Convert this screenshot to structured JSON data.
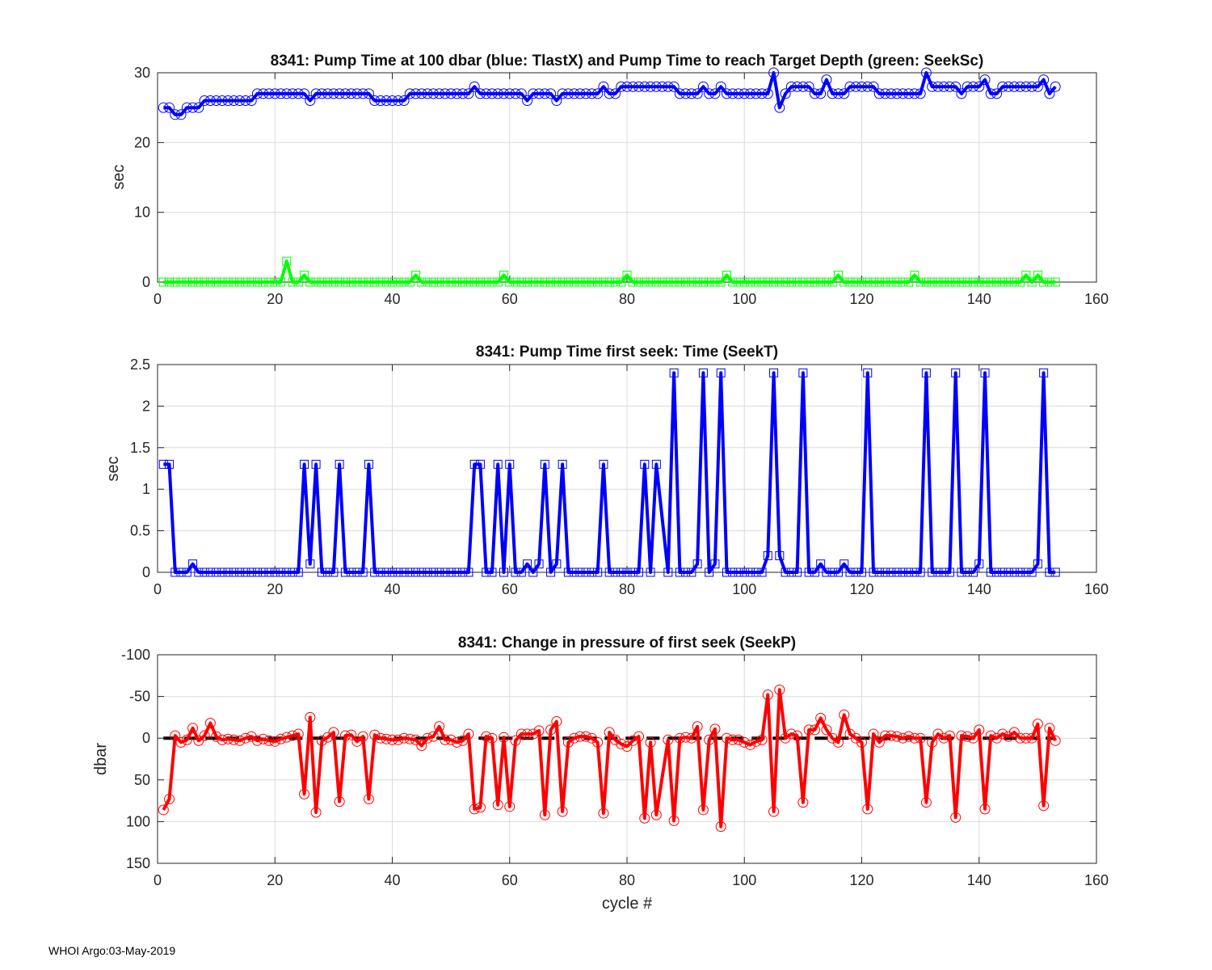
{
  "footer": "WHOI Argo:03-May-2019",
  "chart_data": [
    {
      "type": "line",
      "title": "8341:  Pump Time at 100 dbar (blue: TlastX) and Pump Time to reach Target Depth (green: SeekSc)",
      "xlabel": "",
      "ylabel": "sec",
      "xlim": [
        0,
        160
      ],
      "ylim": [
        0,
        30
      ],
      "reverse_y": false,
      "grid": true,
      "xticks": [
        0,
        20,
        40,
        60,
        80,
        100,
        120,
        140,
        160
      ],
      "yticks": [
        0,
        10,
        20,
        30
      ],
      "x_start": 1,
      "series": [
        {
          "name": "TlastX",
          "color": "#0000ff",
          "marker": "circle",
          "values": [
            25,
            25,
            24,
            24,
            25,
            25,
            25,
            26,
            26,
            26,
            26,
            26,
            26,
            26,
            26,
            26,
            27,
            27,
            27,
            27,
            27,
            27,
            27,
            27,
            27,
            26,
            27,
            27,
            27,
            27,
            27,
            27,
            27,
            27,
            27,
            27,
            26,
            26,
            26,
            26,
            26,
            26,
            27,
            27,
            27,
            27,
            27,
            27,
            27,
            27,
            27,
            27,
            27,
            28,
            27,
            27,
            27,
            27,
            27,
            27,
            27,
            27,
            26,
            27,
            27,
            27,
            27,
            26,
            27,
            27,
            27,
            27,
            27,
            27,
            27,
            28,
            27,
            27,
            28,
            28,
            28,
            28,
            28,
            28,
            28,
            28,
            28,
            28,
            27,
            27,
            27,
            27,
            28,
            27,
            27,
            28,
            27,
            27,
            27,
            27,
            27,
            27,
            27,
            27,
            30,
            25,
            27,
            28,
            28,
            28,
            28,
            27,
            27,
            29,
            27,
            27,
            27,
            28,
            28,
            28,
            28,
            28,
            27,
            27,
            27,
            27,
            27,
            27,
            27,
            27,
            30,
            28,
            28,
            28,
            28,
            28,
            27,
            28,
            28,
            28,
            29,
            27,
            27,
            28,
            28,
            28,
            28,
            28,
            28,
            28,
            29,
            27,
            28
          ]
        },
        {
          "name": "SeekSc",
          "color": "#00ff00",
          "marker": "square",
          "values": [
            0,
            0,
            0,
            0,
            0,
            0,
            0,
            0,
            0,
            0,
            0,
            0,
            0,
            0,
            0,
            0,
            0,
            0,
            0,
            0,
            0,
            3,
            0,
            0,
            1,
            0,
            0,
            0,
            0,
            0,
            0,
            0,
            0,
            0,
            0,
            0,
            0,
            0,
            0,
            0,
            0,
            0,
            0,
            1,
            0,
            0,
            0,
            0,
            0,
            0,
            0,
            0,
            0,
            0,
            0,
            0,
            0,
            0,
            1,
            0,
            0,
            0,
            0,
            0,
            0,
            0,
            0,
            0,
            0,
            0,
            0,
            0,
            0,
            0,
            0,
            0,
            0,
            0,
            0,
            1,
            0,
            0,
            0,
            0,
            0,
            0,
            0,
            0,
            0,
            0,
            0,
            0,
            0,
            0,
            0,
            0,
            1,
            0,
            0,
            0,
            0,
            0,
            0,
            0,
            0,
            0,
            0,
            0,
            0,
            0,
            0,
            0,
            0,
            0,
            0,
            1,
            0,
            0,
            0,
            0,
            0,
            0,
            0,
            0,
            0,
            0,
            0,
            0,
            1,
            0,
            0,
            0,
            0,
            0,
            0,
            0,
            0,
            0,
            0,
            0,
            0,
            0,
            0,
            0,
            0,
            0,
            0,
            1,
            0,
            1,
            0,
            0,
            0
          ]
        }
      ]
    },
    {
      "type": "line",
      "title": "8341: Pump Time first seek: Time (SeekT)",
      "xlabel": "",
      "ylabel": "sec",
      "xlim": [
        0,
        160
      ],
      "ylim": [
        0,
        2.5
      ],
      "reverse_y": false,
      "grid": true,
      "xticks": [
        0,
        20,
        40,
        60,
        80,
        100,
        120,
        140,
        160
      ],
      "yticks": [
        0,
        0.5,
        1,
        1.5,
        2,
        2.5
      ],
      "x_start": 1,
      "series": [
        {
          "name": "SeekT",
          "color": "#0000ff",
          "marker": "square",
          "values": [
            1.3,
            1.3,
            0,
            0,
            0,
            0.1,
            0,
            0,
            0,
            0,
            0,
            0,
            0,
            0,
            0,
            0,
            0,
            0,
            0,
            0,
            0,
            0,
            0,
            0,
            1.3,
            0.1,
            1.3,
            0,
            0,
            0,
            1.3,
            0,
            0,
            0,
            0,
            1.3,
            0,
            0,
            0,
            0,
            0,
            0,
            0,
            0,
            0,
            0,
            0,
            0,
            0,
            0,
            0,
            0,
            0,
            1.3,
            1.3,
            0,
            0,
            1.3,
            0,
            1.3,
            0,
            0,
            0.1,
            0,
            0.1,
            1.3,
            0,
            0.1,
            1.3,
            0,
            0,
            0,
            0,
            0,
            0,
            1.3,
            0,
            0,
            0,
            0,
            0,
            0,
            1.3,
            0,
            1.3,
            null,
            0,
            2.4,
            0,
            0,
            0,
            0.1,
            2.4,
            0,
            0.1,
            2.4,
            0,
            0,
            0,
            0,
            0,
            0,
            0,
            0.2,
            2.4,
            0.2,
            0,
            0,
            0,
            2.4,
            0,
            0,
            0.1,
            0,
            0,
            0,
            0.1,
            0,
            0,
            0,
            2.4,
            0,
            0,
            0,
            0,
            0,
            0,
            0,
            0,
            0,
            2.4,
            0,
            0,
            0,
            0,
            2.4,
            0,
            0,
            0,
            0.1,
            2.4,
            0,
            0,
            0,
            0,
            0,
            0,
            0,
            0,
            0.1,
            2.4,
            0,
            0
          ]
        }
      ]
    },
    {
      "type": "line",
      "title": "8341: Change in pressure of first seek (SeekP)",
      "xlabel": "cycle #",
      "ylabel": "dbar",
      "xlim": [
        0,
        160
      ],
      "ylim": [
        -100,
        150
      ],
      "reverse_y": true,
      "grid": true,
      "xticks": [
        0,
        20,
        40,
        60,
        80,
        100,
        120,
        140,
        160
      ],
      "yticks": [
        -100,
        -50,
        0,
        50,
        100,
        150
      ],
      "reference_line": {
        "y": 0,
        "color": "#000000",
        "style": "dashed"
      },
      "x_start": 1,
      "series": [
        {
          "name": "SeekP",
          "color": "#ff0000",
          "marker": "circle",
          "values": [
            86,
            73,
            -3,
            5,
            2,
            -12,
            3,
            -3,
            -18,
            -2,
            2,
            1,
            2,
            3,
            0,
            -2,
            3,
            1,
            3,
            4,
            1,
            -1,
            -3,
            -5,
            67,
            -25,
            89,
            3,
            -1,
            -7,
            76,
            -3,
            -4,
            4,
            -2,
            73,
            -4,
            0,
            1,
            2,
            2,
            0,
            1,
            2,
            9,
            0,
            -2,
            -14,
            2,
            2,
            5,
            3,
            -5,
            85,
            83,
            -2,
            0,
            80,
            -1,
            82,
            3,
            -5,
            -5,
            -5,
            -9,
            92,
            -10,
            -20,
            88,
            5,
            0,
            -2,
            -2,
            0,
            5,
            90,
            -7,
            2,
            7,
            10,
            3,
            -2,
            96,
            5,
            92,
            null,
            2,
            99,
            0,
            -1,
            0,
            -14,
            86,
            2,
            -11,
            106,
            0,
            2,
            2,
            5,
            8,
            4,
            2,
            -52,
            88,
            -58,
            0,
            -5,
            -3,
            77,
            -10,
            -10,
            -24,
            -10,
            0,
            5,
            -28,
            -5,
            0,
            5,
            85,
            -5,
            5,
            -3,
            -3,
            -2,
            0,
            -2,
            0,
            0,
            77,
            5,
            -5,
            0,
            -3,
            95,
            -3,
            -2,
            0,
            -10,
            85,
            -3,
            0,
            -5,
            -2,
            -7,
            0,
            0,
            0,
            -17,
            81,
            -12,
            3
          ]
        }
      ]
    }
  ]
}
